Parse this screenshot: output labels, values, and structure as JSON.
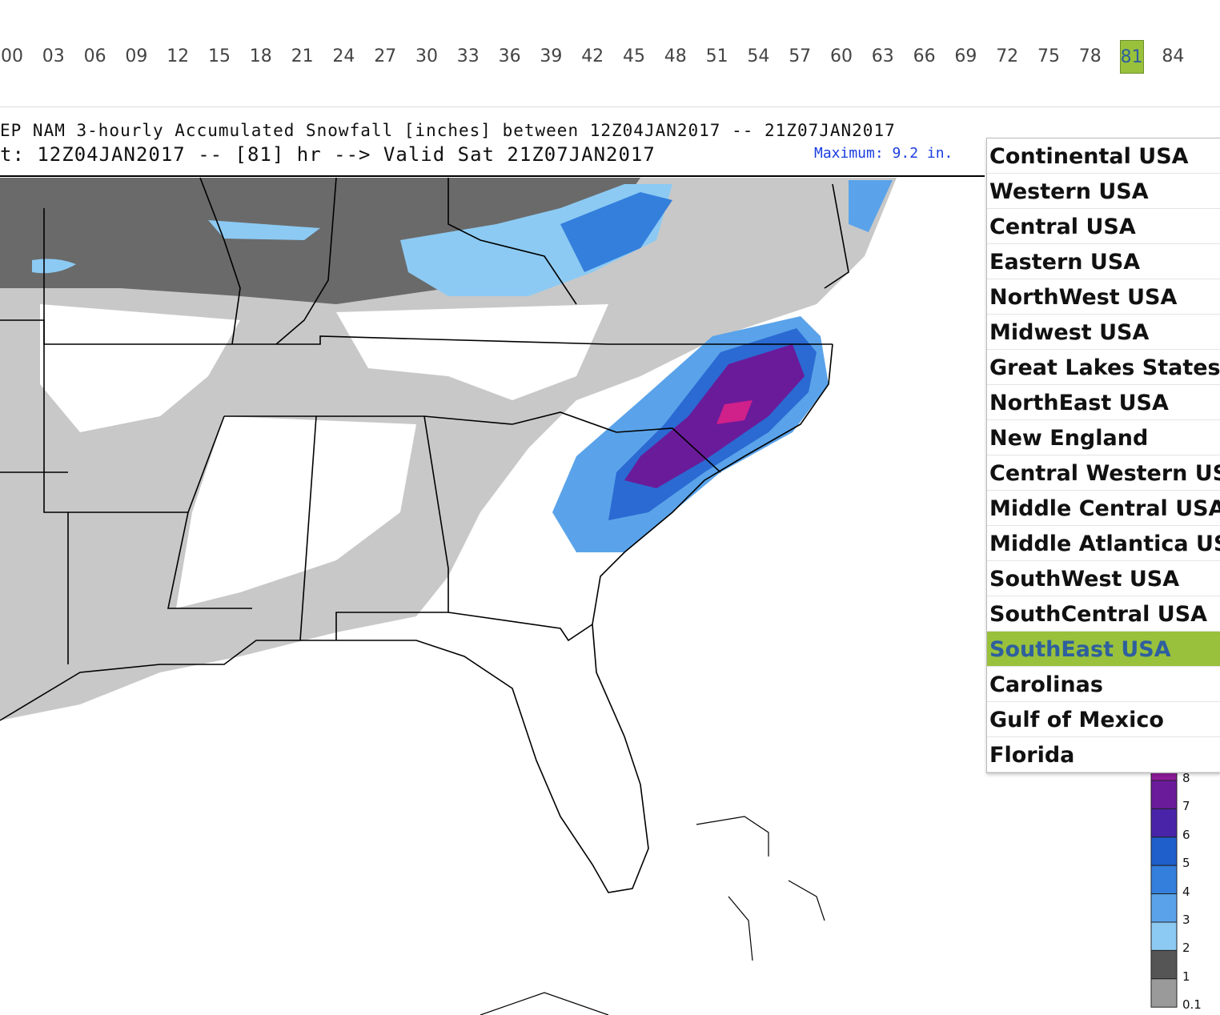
{
  "hours": [
    {
      "label": "00"
    },
    {
      "label": "03"
    },
    {
      "label": "06"
    },
    {
      "label": "09"
    },
    {
      "label": "12"
    },
    {
      "label": "15"
    },
    {
      "label": "18"
    },
    {
      "label": "21"
    },
    {
      "label": "24"
    },
    {
      "label": "27"
    },
    {
      "label": "30"
    },
    {
      "label": "33"
    },
    {
      "label": "36"
    },
    {
      "label": "39"
    },
    {
      "label": "42"
    },
    {
      "label": "45"
    },
    {
      "label": "48"
    },
    {
      "label": "51"
    },
    {
      "label": "54"
    },
    {
      "label": "57"
    },
    {
      "label": "60"
    },
    {
      "label": "63"
    },
    {
      "label": "66"
    },
    {
      "label": "69"
    },
    {
      "label": "72"
    },
    {
      "label": "75"
    },
    {
      "label": "78"
    },
    {
      "label": "81",
      "selected": true
    },
    {
      "label": "84"
    }
  ],
  "map": {
    "title_line1": "EP NAM 3-hourly Accumulated Snowfall [inches] between 12Z04JAN2017 -- 21Z07JAN2017",
    "title_line2": "t: 12Z04JAN2017 -- [81] hr --> Valid Sat 21Z07JAN2017",
    "maximum": "Maximum: 9.2 in."
  },
  "regions": [
    {
      "label": "Continental USA"
    },
    {
      "label": "Western USA"
    },
    {
      "label": "Central USA"
    },
    {
      "label": "Eastern USA"
    },
    {
      "label": "NorthWest USA"
    },
    {
      "label": "Midwest USA"
    },
    {
      "label": "Great Lakes States"
    },
    {
      "label": "NorthEast USA"
    },
    {
      "label": "New England"
    },
    {
      "label": "Central Western US"
    },
    {
      "label": "Middle Central USA"
    },
    {
      "label": "Middle Atlantica US"
    },
    {
      "label": "SouthWest USA"
    },
    {
      "label": "SouthCentral USA"
    },
    {
      "label": "SouthEast USA",
      "selected": true
    },
    {
      "label": "Carolinas"
    },
    {
      "label": "Gulf of Mexico"
    },
    {
      "label": "Florida"
    }
  ],
  "legend": [
    {
      "label": 8,
      "color": "#8d1a9a"
    },
    {
      "label": 7,
      "color": "#6a1b9a"
    },
    {
      "label": 6,
      "color": "#4a24a8"
    },
    {
      "label": 5,
      "color": "#1f5fcc"
    },
    {
      "label": 4,
      "color": "#347fdc"
    },
    {
      "label": 3,
      "color": "#5aa3ea"
    },
    {
      "label": 2,
      "color": "#8ccaf3"
    },
    {
      "label": 1,
      "color": "#555555"
    },
    {
      "label": 0.1,
      "color": "#9a9a9a"
    }
  ]
}
